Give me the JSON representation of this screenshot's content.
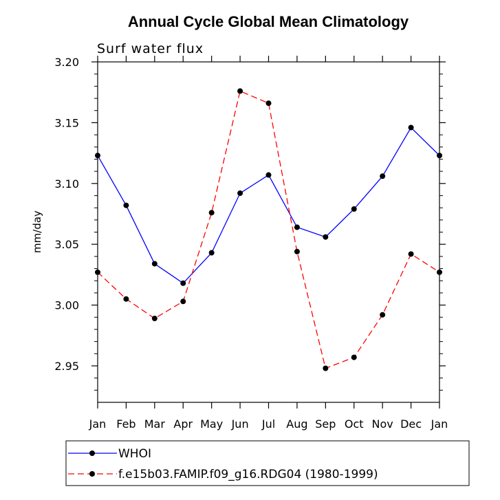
{
  "chart_data": {
    "type": "line",
    "title": "Annual Cycle Global Mean Climatology",
    "subtitle": "Surf water flux",
    "ylabel": "mm/day",
    "xlabel": "",
    "categories": [
      "Jan",
      "Feb",
      "Mar",
      "Apr",
      "May",
      "Jun",
      "Jul",
      "Aug",
      "Sep",
      "Oct",
      "Nov",
      "Dec",
      "Jan"
    ],
    "ylim": [
      2.92,
      3.2
    ],
    "yticks": [
      2.95,
      3.0,
      3.05,
      3.1,
      3.15,
      3.2
    ],
    "ytick_labels": [
      "2.95",
      "3.00",
      "3.05",
      "3.10",
      "3.15",
      "3.20"
    ],
    "series": [
      {
        "name": "WHOI",
        "color": "#0000ff",
        "dash": "solid",
        "values": [
          3.123,
          3.082,
          3.034,
          3.018,
          3.043,
          3.092,
          3.107,
          3.064,
          3.056,
          3.079,
          3.106,
          3.146,
          3.123
        ]
      },
      {
        "name": "f.e15b03.FAMIP.f09_g16.RDG04 (1980-1999)",
        "color": "#ff0000",
        "dash": "dashed",
        "values": [
          3.027,
          3.005,
          2.989,
          3.003,
          3.076,
          3.176,
          3.166,
          3.044,
          2.948,
          2.957,
          2.992,
          3.042,
          3.027
        ]
      }
    ],
    "legend_position": "bottom"
  }
}
